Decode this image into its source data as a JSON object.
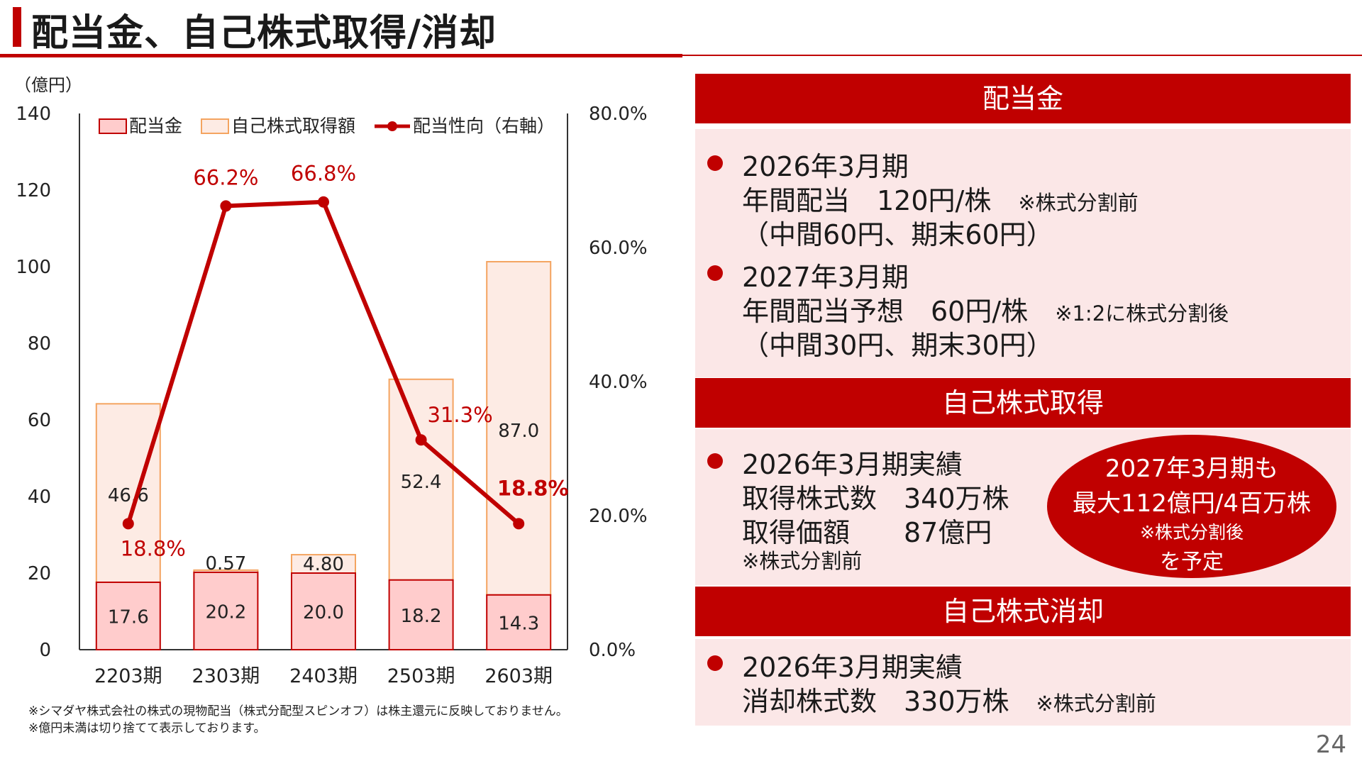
{
  "title": "配当金、自己株式取得/消却",
  "page_number": "24",
  "notes": [
    "※シマダヤ株式会社の株式の現物配当（株式分配型スピンオフ）は株主還元に反映しておりません。",
    "※億円未満は切り捨てて表示しております。"
  ],
  "chart_data": {
    "type": "bar",
    "stacked": true,
    "unit_label": "（億円）",
    "categories": [
      "2203期",
      "2303期",
      "2403期",
      "2503期",
      "2603期"
    ],
    "ylim": [
      0,
      140
    ],
    "yticks": [
      "0",
      "20",
      "40",
      "60",
      "80",
      "100",
      "120",
      "140"
    ],
    "y2lim": [
      0,
      80
    ],
    "y2ticks": [
      "0.0%",
      "20.0%",
      "40.0%",
      "60.0%",
      "80.0%"
    ],
    "legend_position": "top",
    "series": [
      {
        "name": "配当金",
        "values": [
          17.6,
          20.2,
          20.0,
          18.2,
          14.3
        ],
        "labels": [
          "17.6",
          "20.2",
          "20.0",
          "18.2",
          "14.3"
        ],
        "color": "#ffcccc",
        "edge": "#c00000"
      },
      {
        "name": "自己株式取得額",
        "values": [
          46.6,
          0.57,
          4.8,
          52.4,
          87.0
        ],
        "labels": [
          "46.6",
          "0.57",
          "4.80",
          "52.4",
          "87.0"
        ],
        "color": "#fdebe4",
        "edge": "#f4a460"
      },
      {
        "name": "配当性向（右軸）",
        "type": "line",
        "axis": "right",
        "values": [
          18.8,
          66.2,
          66.8,
          31.3,
          18.8
        ],
        "labels": [
          "18.8%",
          "66.2%",
          "66.8%",
          "31.3%",
          "18.8%"
        ],
        "color": "#c00000"
      }
    ]
  },
  "panels": {
    "dividend": {
      "header": "配当金",
      "item1": {
        "period": "2026年3月期",
        "line2": "年間配当　120円/株",
        "note": "※株式分割前",
        "line3": "（中間60円、期末60円）"
      },
      "item2": {
        "period": "2027年3月期",
        "line2": "年間配当予想　60円/株",
        "note": "※1:2に株式分割後",
        "line3": "（中間30円、期末30円）"
      }
    },
    "buyback": {
      "header": "自己株式取得",
      "period": "2026年3月期実績",
      "line2": "取得株式数　340万株",
      "line3": "取得価額　　87億円",
      "note": "※株式分割前",
      "oval": {
        "line1": "2027年3月期も",
        "line2": "最大112億円/4百万株",
        "line3": "※株式分割後",
        "line4": "を予定"
      }
    },
    "cancel": {
      "header": "自己株式消却",
      "period": "2026年3月期実績",
      "line2": "消却株式数　330万株",
      "note": "※株式分割前"
    }
  }
}
